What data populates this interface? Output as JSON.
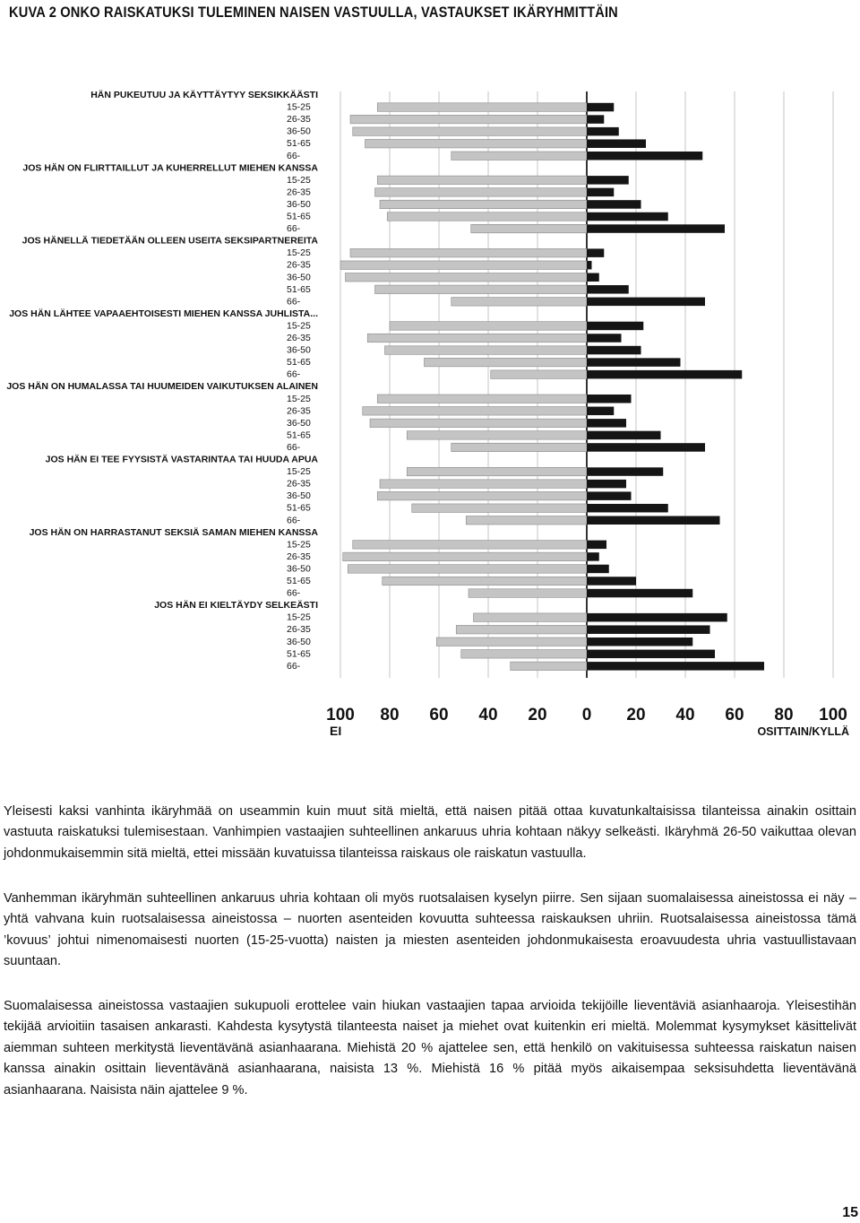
{
  "page": {
    "title": "KUVA 2 ONKO RAISKATUKSI TULEMINEN NAISEN VASTUULLA, VASTAUKSET IKÄRYHMITTÄIN",
    "page_number": "15"
  },
  "paragraphs": [
    "Yleisesti kaksi vanhinta ikäryhmää on useammin kuin muut sitä mieltä, että naisen pitää ottaa kuvatunkaltaisissa tilanteissa ainakin osittain vastuuta raiskatuksi tulemisestaan. Vanhimpien vastaajien suhteellinen ankaruus uhria kohtaan näkyy selkeästi. Ikäryhmä 26-50 vaikuttaa olevan johdonmukaisemmin sitä mieltä, ettei missään kuvatuissa tilanteissa raiskaus ole raiskatun vastuulla.",
    "Vanhemman ikäryhmän suhteellinen ankaruus uhria kohtaan oli myös ruotsalaisen kyselyn piirre. Sen sijaan suomalaisessa aineistossa ei näy – yhtä vahvana kuin ruotsalaisessa aineistossa – nuorten asenteiden kovuutta suhteessa raiskauksen uhriin. Ruotsalaisessa aineistossa tämä ’kovuus’ johtui nimenomaisesti nuorten (15-25-vuotta) naisten ja miesten asenteiden johdonmukaisesta eroavuudesta uhria vastuullistavaan suuntaan.",
    "Suomalaisessa aineistossa vastaajien sukupuoli erottelee vain hiukan vastaajien tapaa arvioida tekijöille lieventäviä asianhaaroja. Yleisestihän tekijää arvioitiin tasaisen ankarasti. Kahdesta kysytystä tilanteesta naiset ja miehet ovat kuitenkin eri mieltä. Molemmat kysymykset käsittelivät aiemman suhteen merkitystä lieventävänä asianhaarana. Miehistä 20 % ajattelee sen, että henkilö on vakituisessa suhteessa raiskatun naisen kanssa ainakin osittain lieventävänä asianhaarana, naisista 13 %. Miehistä 16 % pitää myös aikaisempaa seksisuhdetta lieventävänä asianhaarana. Naisista näin ajattelee 9 %."
  ],
  "chart_data": {
    "type": "bar",
    "orientation": "horizontal-diverging",
    "categories": [
      "HÄN PUKEUTUU JA KÄYTTÄYTYY SEKSIKKÄÄSTI",
      "JOS HÄN ON FLIRTTAILLUT JA KUHERRELLUT MIEHEN KANSSA",
      "JOS HÄNELLÄ TIEDETÄÄN OLLEEN USEITA SEKSIPARTNEREITA",
      "JOS HÄN LÄHTEE VAPAAEHTOISESTI MIEHEN KANSSA JUHLISTA...",
      "JOS HÄN ON HUMALASSA TAI HUUMEIDEN VAIKUTUKSEN ALAINEN",
      "JOS HÄN EI TEE FYYSISTÄ VASTARINTAA TAI HUUDA APUA",
      "JOS HÄN ON HARRASTANUT SEKSIÄ SAMAN MIEHEN KANSSA",
      "JOS HÄN EI KIELTÄYDY SELKEÄSTI"
    ],
    "age_groups": [
      "15-25",
      "26-35",
      "36-50",
      "51-65",
      "66-"
    ],
    "series": [
      {
        "name": "EI",
        "color": "#c4c4c4",
        "values": [
          [
            85,
            96,
            95,
            90,
            55
          ],
          [
            85,
            86,
            84,
            81,
            47
          ],
          [
            96,
            100,
            98,
            86,
            55
          ],
          [
            80,
            89,
            82,
            66,
            39
          ],
          [
            85,
            91,
            88,
            73,
            55
          ],
          [
            73,
            84,
            85,
            71,
            49
          ],
          [
            95,
            99,
            97,
            83,
            48
          ],
          [
            46,
            53,
            61,
            51,
            31
          ]
        ]
      },
      {
        "name": "OSITTAIN/KYLLÄ",
        "color": "#151515",
        "values": [
          [
            11,
            7,
            13,
            24,
            47
          ],
          [
            17,
            11,
            22,
            33,
            56
          ],
          [
            7,
            2,
            5,
            17,
            48
          ],
          [
            23,
            14,
            22,
            38,
            63
          ],
          [
            18,
            11,
            16,
            30,
            48
          ],
          [
            31,
            16,
            18,
            33,
            54
          ],
          [
            8,
            5,
            9,
            20,
            43
          ],
          [
            57,
            50,
            43,
            52,
            72
          ]
        ]
      }
    ],
    "xlim": [
      -100,
      100
    ],
    "x_ticks": [
      "100",
      "80",
      "60",
      "40",
      "20",
      "0",
      "20",
      "40",
      "60",
      "80",
      "100"
    ],
    "left_axis_label": "EI",
    "right_axis_label": "OSITTAIN/KYLLÄ",
    "grid": true
  }
}
